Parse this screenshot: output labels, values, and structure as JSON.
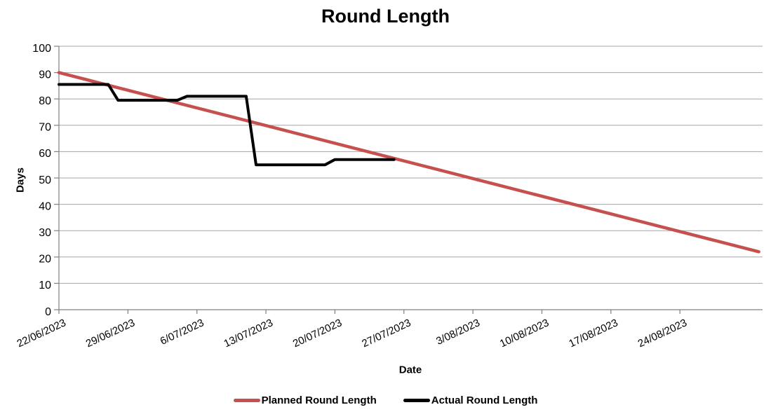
{
  "chart": {
    "title": "Round Length",
    "x_axis_title": "Date",
    "y_axis_title": "Days"
  },
  "chart_data": {
    "type": "line",
    "title": "Round Length",
    "xlabel": "Date",
    "ylabel": "Days",
    "ylim": [
      0,
      100
    ],
    "y_ticks": [
      0,
      10,
      20,
      30,
      40,
      50,
      60,
      70,
      80,
      90,
      100
    ],
    "x_tick_labels": [
      "22/06/2023",
      "29/06/2023",
      "6/07/2023",
      "13/07/2023",
      "20/07/2023",
      "27/07/2023",
      "3/08/2023",
      "10/08/2023",
      "17/08/2023",
      "24/08/2023"
    ],
    "x_start_date": "22/06/2023",
    "grid": true,
    "legend_position": "bottom",
    "colors": {
      "planned": "#c5504d",
      "actual": "#000000",
      "gridline": "#a6a6a6",
      "axis": "#808080"
    },
    "series": [
      {
        "name": "Planned Round Length",
        "key": "planned",
        "color": "#c5504d",
        "points": [
          [
            "22/06/2023",
            90
          ],
          [
            "01/09/2023",
            22
          ]
        ]
      },
      {
        "name": "Actual Round Length",
        "key": "actual",
        "color": "#000000",
        "points": [
          [
            "22/06/2023",
            85.5
          ],
          [
            "27/06/2023",
            85.5
          ],
          [
            "28/06/2023",
            79.5
          ],
          [
            "04/07/2023",
            79.5
          ],
          [
            "05/07/2023",
            81
          ],
          [
            "11/07/2023",
            81
          ],
          [
            "12/07/2023",
            55
          ],
          [
            "19/07/2023",
            55
          ],
          [
            "20/07/2023",
            57
          ],
          [
            "26/07/2023",
            57
          ]
        ]
      }
    ]
  }
}
